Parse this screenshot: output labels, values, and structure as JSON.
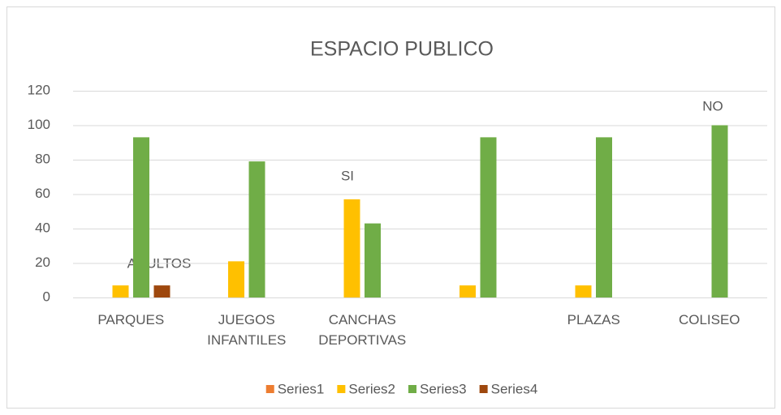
{
  "chart_data": {
    "type": "bar",
    "title": "ESPACIO PUBLICO",
    "categories": [
      "PARQUES",
      "JUEGOS INFANTILES",
      "CANCHAS DEPORTIVAS",
      null,
      "PLAZAS",
      "COLISEO"
    ],
    "series": [
      {
        "name": "Series1",
        "color": "#ED7D31",
        "values": [
          0,
          0,
          0,
          0,
          0,
          0
        ]
      },
      {
        "name": "Series2",
        "color": "#FFC000",
        "values": [
          7,
          21,
          57,
          7,
          7,
          0
        ]
      },
      {
        "name": "Series3",
        "color": "#70AD47",
        "values": [
          93,
          79,
          43,
          93,
          93,
          100
        ]
      },
      {
        "name": "Series4",
        "color": "#9E480E",
        "values": [
          7,
          0,
          0,
          0,
          0,
          0
        ]
      }
    ],
    "annotations": [
      "ADULTOS",
      "SI",
      "NO"
    ],
    "ylim": [
      0,
      120
    ],
    "yticks": [
      0,
      20,
      40,
      60,
      80,
      100,
      120
    ],
    "grid": true,
    "legend": "bottom"
  }
}
